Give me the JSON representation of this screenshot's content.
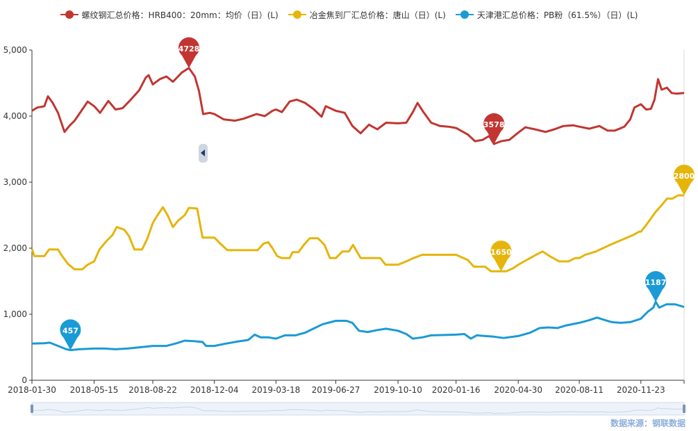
{
  "legend": [
    {
      "label": "螺纹钢汇总价格：HRB400：20mm：均价（日）(L)",
      "color": "#c23531"
    },
    {
      "label": "冶金焦到厂汇总价格：唐山（日）(L)",
      "color": "#e5b50b"
    },
    {
      "label": "天津港汇总价格：PB粉（61.5%）（日）(L)",
      "color": "#1a9ad6"
    }
  ],
  "source_text": "数据来源：钢联数据",
  "chart_data": {
    "type": "line",
    "x_range": [
      "2018-01-30",
      "2021-02-04"
    ],
    "x_ticks": [
      "2018-01-30",
      "2018-05-15",
      "2018-08-22",
      "2018-12-04",
      "2019-03-18",
      "2019-06-27",
      "2019-10-10",
      "2020-01-16",
      "2020-04-30",
      "2020-08-11",
      "2020-11-23"
    ],
    "y_ticks": [
      "0",
      "1,000",
      "2,000",
      "3,000",
      "4,000",
      "5,000"
    ],
    "ylim": [
      0,
      5000
    ],
    "grid": false,
    "legend_position": "top",
    "series": [
      {
        "name": "螺纹钢汇总价格：HRB400：20mm：均价（日）(L)",
        "color": "#c23531",
        "points": [
          [
            "2018-01-30",
            4080
          ],
          [
            "2018-02-08",
            4130
          ],
          [
            "2018-02-20",
            4150
          ],
          [
            "2018-02-26",
            4300
          ],
          [
            "2018-03-06",
            4200
          ],
          [
            "2018-03-15",
            4050
          ],
          [
            "2018-03-26",
            3760
          ],
          [
            "2018-04-03",
            3850
          ],
          [
            "2018-04-12",
            3930
          ],
          [
            "2018-04-25",
            4100
          ],
          [
            "2018-05-04",
            4220
          ],
          [
            "2018-05-15",
            4150
          ],
          [
            "2018-05-25",
            4050
          ],
          [
            "2018-06-08",
            4230
          ],
          [
            "2018-06-20",
            4100
          ],
          [
            "2018-07-02",
            4120
          ],
          [
            "2018-07-16",
            4250
          ],
          [
            "2018-07-30",
            4390
          ],
          [
            "2018-08-10",
            4580
          ],
          [
            "2018-08-15",
            4620
          ],
          [
            "2018-08-22",
            4480
          ],
          [
            "2018-09-03",
            4560
          ],
          [
            "2018-09-14",
            4600
          ],
          [
            "2018-09-25",
            4520
          ],
          [
            "2018-10-10",
            4660
          ],
          [
            "2018-10-22",
            4728
          ],
          [
            "2018-11-01",
            4600
          ],
          [
            "2018-11-08",
            4380
          ],
          [
            "2018-11-15",
            4030
          ],
          [
            "2018-11-26",
            4050
          ],
          [
            "2018-12-04",
            4030
          ],
          [
            "2018-12-20",
            3950
          ],
          [
            "2019-01-08",
            3930
          ],
          [
            "2019-01-22",
            3960
          ],
          [
            "2019-02-13",
            4030
          ],
          [
            "2019-02-27",
            4000
          ],
          [
            "2019-03-12",
            4080
          ],
          [
            "2019-03-18",
            4100
          ],
          [
            "2019-03-28",
            4060
          ],
          [
            "2019-04-10",
            4220
          ],
          [
            "2019-04-22",
            4250
          ],
          [
            "2019-05-06",
            4200
          ],
          [
            "2019-05-20",
            4110
          ],
          [
            "2019-06-03",
            3990
          ],
          [
            "2019-06-10",
            4150
          ],
          [
            "2019-06-27",
            4080
          ],
          [
            "2019-07-12",
            4050
          ],
          [
            "2019-07-25",
            3850
          ],
          [
            "2019-08-08",
            3740
          ],
          [
            "2019-08-22",
            3870
          ],
          [
            "2019-09-05",
            3800
          ],
          [
            "2019-09-20",
            3900
          ],
          [
            "2019-10-10",
            3890
          ],
          [
            "2019-10-24",
            3900
          ],
          [
            "2019-11-04",
            4060
          ],
          [
            "2019-11-12",
            4200
          ],
          [
            "2019-11-22",
            4060
          ],
          [
            "2019-12-05",
            3900
          ],
          [
            "2019-12-20",
            3850
          ],
          [
            "2020-01-03",
            3840
          ],
          [
            "2020-01-16",
            3820
          ],
          [
            "2020-02-05",
            3720
          ],
          [
            "2020-02-17",
            3620
          ],
          [
            "2020-03-01",
            3640
          ],
          [
            "2020-03-12",
            3700
          ],
          [
            "2020-03-20",
            3578
          ],
          [
            "2020-04-01",
            3620
          ],
          [
            "2020-04-15",
            3640
          ],
          [
            "2020-04-30",
            3750
          ],
          [
            "2020-05-12",
            3830
          ],
          [
            "2020-05-28",
            3800
          ],
          [
            "2020-06-15",
            3760
          ],
          [
            "2020-06-30",
            3800
          ],
          [
            "2020-07-15",
            3850
          ],
          [
            "2020-08-01",
            3860
          ],
          [
            "2020-08-11",
            3840
          ],
          [
            "2020-08-28",
            3810
          ],
          [
            "2020-09-14",
            3850
          ],
          [
            "2020-09-28",
            3780
          ],
          [
            "2020-10-10",
            3780
          ],
          [
            "2020-10-26",
            3840
          ],
          [
            "2020-11-05",
            3950
          ],
          [
            "2020-11-12",
            4130
          ],
          [
            "2020-11-23",
            4180
          ],
          [
            "2020-12-02",
            4100
          ],
          [
            "2020-12-10",
            4110
          ],
          [
            "2020-12-16",
            4250
          ],
          [
            "2020-12-22",
            4560
          ],
          [
            "2020-12-28",
            4400
          ],
          [
            "2021-01-06",
            4430
          ],
          [
            "2021-01-14",
            4350
          ],
          [
            "2021-01-22",
            4340
          ],
          [
            "2021-02-04",
            4350
          ]
        ]
      },
      {
        "name": "冶金焦到厂汇总价格：唐山（日）(L)",
        "color": "#e5b50b",
        "points": [
          [
            "2018-01-30",
            1990
          ],
          [
            "2018-02-03",
            1880
          ],
          [
            "2018-02-20",
            1880
          ],
          [
            "2018-02-28",
            1980
          ],
          [
            "2018-03-15",
            1980
          ],
          [
            "2018-03-22",
            1880
          ],
          [
            "2018-04-01",
            1760
          ],
          [
            "2018-04-12",
            1680
          ],
          [
            "2018-04-25",
            1680
          ],
          [
            "2018-05-04",
            1750
          ],
          [
            "2018-05-15",
            1800
          ],
          [
            "2018-05-24",
            1980
          ],
          [
            "2018-06-04",
            2100
          ],
          [
            "2018-06-15",
            2200
          ],
          [
            "2018-06-22",
            2320
          ],
          [
            "2018-07-05",
            2280
          ],
          [
            "2018-07-13",
            2180
          ],
          [
            "2018-07-22",
            1980
          ],
          [
            "2018-08-04",
            1980
          ],
          [
            "2018-08-13",
            2150
          ],
          [
            "2018-08-22",
            2380
          ],
          [
            "2018-08-30",
            2500
          ],
          [
            "2018-09-08",
            2620
          ],
          [
            "2018-09-16",
            2500
          ],
          [
            "2018-09-25",
            2320
          ],
          [
            "2018-10-04",
            2420
          ],
          [
            "2018-10-15",
            2500
          ],
          [
            "2018-10-22",
            2610
          ],
          [
            "2018-11-05",
            2600
          ],
          [
            "2018-11-14",
            2160
          ],
          [
            "2018-12-04",
            2160
          ],
          [
            "2018-12-14",
            2070
          ],
          [
            "2018-12-26",
            1970
          ],
          [
            "2019-01-15",
            1970
          ],
          [
            "2019-02-15",
            1970
          ],
          [
            "2019-02-25",
            2070
          ],
          [
            "2019-03-05",
            2090
          ],
          [
            "2019-03-12",
            2000
          ],
          [
            "2019-03-20",
            1880
          ],
          [
            "2019-03-28",
            1850
          ],
          [
            "2019-04-10",
            1850
          ],
          [
            "2019-04-15",
            1940
          ],
          [
            "2019-04-25",
            1940
          ],
          [
            "2019-05-04",
            2050
          ],
          [
            "2019-05-14",
            2150
          ],
          [
            "2019-05-28",
            2150
          ],
          [
            "2019-06-08",
            2050
          ],
          [
            "2019-06-17",
            1850
          ],
          [
            "2019-06-27",
            1850
          ],
          [
            "2019-07-08",
            1950
          ],
          [
            "2019-07-19",
            1950
          ],
          [
            "2019-07-26",
            2050
          ],
          [
            "2019-08-08",
            1850
          ],
          [
            "2019-08-20",
            1850
          ],
          [
            "2019-09-10",
            1850
          ],
          [
            "2019-09-19",
            1750
          ],
          [
            "2019-10-10",
            1750
          ],
          [
            "2019-10-24",
            1800
          ],
          [
            "2019-11-05",
            1850
          ],
          [
            "2019-11-20",
            1900
          ],
          [
            "2019-12-05",
            1900
          ],
          [
            "2020-01-16",
            1900
          ],
          [
            "2020-02-05",
            1820
          ],
          [
            "2020-02-15",
            1720
          ],
          [
            "2020-03-05",
            1720
          ],
          [
            "2020-03-15",
            1650
          ],
          [
            "2020-04-10",
            1650
          ],
          [
            "2020-04-22",
            1700
          ],
          [
            "2020-04-30",
            1750
          ],
          [
            "2020-05-10",
            1800
          ],
          [
            "2020-05-20",
            1850
          ],
          [
            "2020-05-30",
            1900
          ],
          [
            "2020-06-10",
            1950
          ],
          [
            "2020-06-22",
            1880
          ],
          [
            "2020-07-08",
            1800
          ],
          [
            "2020-07-24",
            1800
          ],
          [
            "2020-08-04",
            1850
          ],
          [
            "2020-08-11",
            1850
          ],
          [
            "2020-08-21",
            1900
          ],
          [
            "2020-09-08",
            1950
          ],
          [
            "2020-09-20",
            2000
          ],
          [
            "2020-10-02",
            2050
          ],
          [
            "2020-10-15",
            2100
          ],
          [
            "2020-10-28",
            2150
          ],
          [
            "2020-11-10",
            2200
          ],
          [
            "2020-11-20",
            2250
          ],
          [
            "2020-11-23",
            2250
          ],
          [
            "2020-12-02",
            2350
          ],
          [
            "2020-12-10",
            2450
          ],
          [
            "2020-12-18",
            2550
          ],
          [
            "2020-12-28",
            2650
          ],
          [
            "2021-01-06",
            2750
          ],
          [
            "2021-01-15",
            2750
          ],
          [
            "2021-01-25",
            2800
          ],
          [
            "2021-02-04",
            2800
          ]
        ]
      },
      {
        "name": "天津港汇总价格：PB粉（61.5%）（日）(L)",
        "color": "#1a9ad6",
        "points": [
          [
            "2018-01-30",
            555
          ],
          [
            "2018-02-20",
            560
          ],
          [
            "2018-03-01",
            570
          ],
          [
            "2018-03-15",
            520
          ],
          [
            "2018-03-29",
            470
          ],
          [
            "2018-04-05",
            457
          ],
          [
            "2018-04-20",
            470
          ],
          [
            "2018-05-15",
            480
          ],
          [
            "2018-06-01",
            480
          ],
          [
            "2018-06-20",
            470
          ],
          [
            "2018-07-10",
            480
          ],
          [
            "2018-08-01",
            500
          ],
          [
            "2018-08-22",
            520
          ],
          [
            "2018-09-14",
            520
          ],
          [
            "2018-10-01",
            560
          ],
          [
            "2018-10-15",
            600
          ],
          [
            "2018-11-01",
            590
          ],
          [
            "2018-11-14",
            580
          ],
          [
            "2018-11-20",
            520
          ],
          [
            "2018-12-04",
            520
          ],
          [
            "2018-12-20",
            550
          ],
          [
            "2019-01-15",
            590
          ],
          [
            "2019-01-30",
            610
          ],
          [
            "2019-02-10",
            690
          ],
          [
            "2019-02-20",
            650
          ],
          [
            "2019-03-05",
            650
          ],
          [
            "2019-03-18",
            630
          ],
          [
            "2019-04-02",
            680
          ],
          [
            "2019-04-20",
            680
          ],
          [
            "2019-05-06",
            720
          ],
          [
            "2019-05-20",
            780
          ],
          [
            "2019-06-05",
            850
          ],
          [
            "2019-06-27",
            900
          ],
          [
            "2019-07-15",
            900
          ],
          [
            "2019-07-25",
            870
          ],
          [
            "2019-08-05",
            750
          ],
          [
            "2019-08-20",
            730
          ],
          [
            "2019-09-05",
            760
          ],
          [
            "2019-09-20",
            780
          ],
          [
            "2019-10-10",
            750
          ],
          [
            "2019-10-24",
            700
          ],
          [
            "2019-11-04",
            630
          ],
          [
            "2019-11-20",
            650
          ],
          [
            "2019-12-05",
            680
          ],
          [
            "2020-01-16",
            690
          ],
          [
            "2020-01-30",
            700
          ],
          [
            "2020-02-10",
            630
          ],
          [
            "2020-02-20",
            680
          ],
          [
            "2020-03-05",
            670
          ],
          [
            "2020-03-20",
            660
          ],
          [
            "2020-04-05",
            640
          ],
          [
            "2020-04-30",
            670
          ],
          [
            "2020-05-20",
            720
          ],
          [
            "2020-06-05",
            790
          ],
          [
            "2020-06-20",
            800
          ],
          [
            "2020-07-05",
            790
          ],
          [
            "2020-07-20",
            830
          ],
          [
            "2020-08-11",
            870
          ],
          [
            "2020-08-28",
            910
          ],
          [
            "2020-09-10",
            950
          ],
          [
            "2020-09-20",
            920
          ],
          [
            "2020-10-05",
            880
          ],
          [
            "2020-10-20",
            870
          ],
          [
            "2020-11-05",
            880
          ],
          [
            "2020-11-23",
            930
          ],
          [
            "2020-12-05",
            1040
          ],
          [
            "2020-12-14",
            1100
          ],
          [
            "2020-12-18",
            1187
          ],
          [
            "2020-12-24",
            1100
          ],
          [
            "2021-01-05",
            1150
          ],
          [
            "2021-01-20",
            1150
          ],
          [
            "2021-02-04",
            1110
          ]
        ]
      }
    ],
    "markers": [
      {
        "series": 0,
        "label": "4728",
        "x": "2018-10-22",
        "y": 4728
      },
      {
        "series": 0,
        "label": "3578",
        "x": "2020-03-20",
        "y": 3578
      },
      {
        "series": 1,
        "label": "1650",
        "x": "2020-04-01",
        "y": 1650
      },
      {
        "series": 1,
        "label": "2800",
        "x": "2021-02-04",
        "y": 2800
      },
      {
        "series": 2,
        "label": "457",
        "x": "2018-04-05",
        "y": 457
      },
      {
        "series": 2,
        "label": "1187",
        "x": "2020-12-18",
        "y": 1187
      }
    ]
  }
}
